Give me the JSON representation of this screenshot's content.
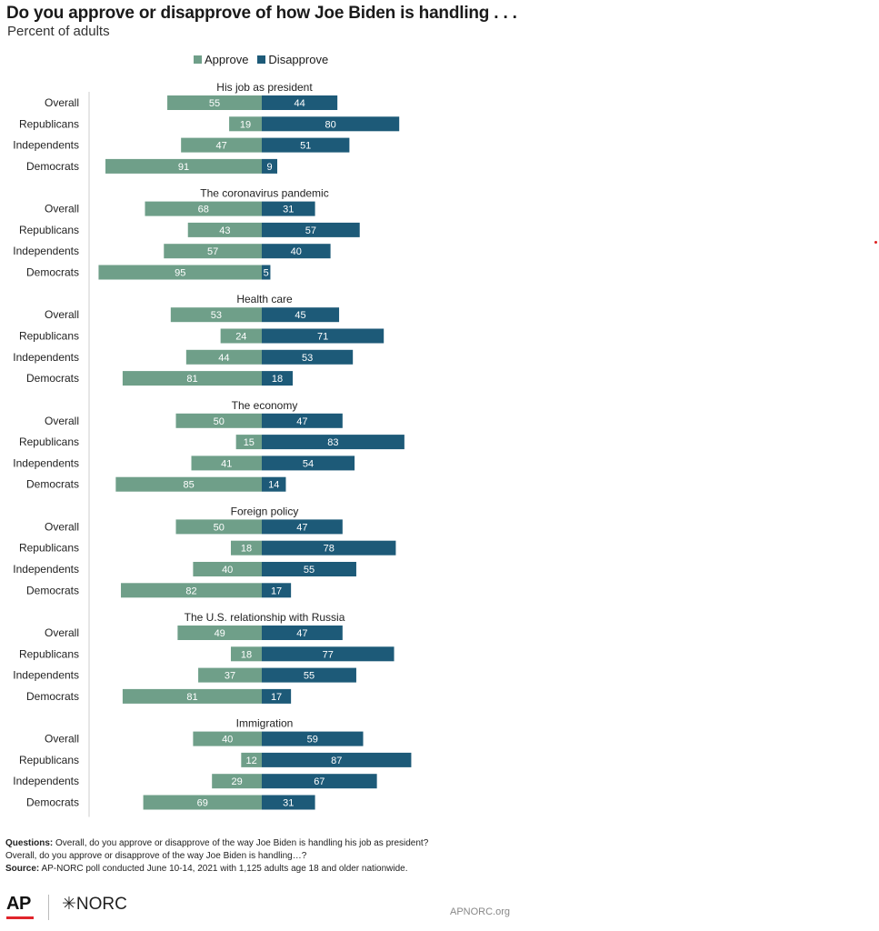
{
  "header": {
    "title": "Do you approve or disapprove of how Joe Biden is handling . . .",
    "subtitle": "Percent of adults"
  },
  "legend": {
    "approve": "Approve",
    "disapprove": "Disapprove"
  },
  "colors": {
    "approve": "#6f9f89",
    "disapprove": "#1d5a78",
    "axis": "#cccccc"
  },
  "chart_data": {
    "type": "bar",
    "orientation": "diverging-horizontal",
    "title": "Do you approve or disapprove of how Joe Biden is handling . . .",
    "subtitle": "Percent of adults",
    "legend_position": "top",
    "series_names": [
      "Approve",
      "Disapprove"
    ],
    "groups": [
      {
        "title": "His job as president",
        "rows": [
          {
            "label": "Overall",
            "approve": 55,
            "disapprove": 44
          },
          {
            "label": "Republicans",
            "approve": 19,
            "disapprove": 80
          },
          {
            "label": "Independents",
            "approve": 47,
            "disapprove": 51
          },
          {
            "label": "Democrats",
            "approve": 91,
            "disapprove": 9
          }
        ]
      },
      {
        "title": "The coronavirus pandemic",
        "rows": [
          {
            "label": "Overall",
            "approve": 68,
            "disapprove": 31
          },
          {
            "label": "Republicans",
            "approve": 43,
            "disapprove": 57
          },
          {
            "label": "Independents",
            "approve": 57,
            "disapprove": 40
          },
          {
            "label": "Democrats",
            "approve": 95,
            "disapprove": 5
          }
        ]
      },
      {
        "title": "Health care",
        "rows": [
          {
            "label": "Overall",
            "approve": 53,
            "disapprove": 45
          },
          {
            "label": "Republicans",
            "approve": 24,
            "disapprove": 71
          },
          {
            "label": "Independents",
            "approve": 44,
            "disapprove": 53
          },
          {
            "label": "Democrats",
            "approve": 81,
            "disapprove": 18
          }
        ]
      },
      {
        "title": "The economy",
        "rows": [
          {
            "label": "Overall",
            "approve": 50,
            "disapprove": 47
          },
          {
            "label": "Republicans",
            "approve": 15,
            "disapprove": 83
          },
          {
            "label": "Independents",
            "approve": 41,
            "disapprove": 54
          },
          {
            "label": "Democrats",
            "approve": 85,
            "disapprove": 14
          }
        ]
      },
      {
        "title": "Foreign policy",
        "rows": [
          {
            "label": "Overall",
            "approve": 50,
            "disapprove": 47
          },
          {
            "label": "Republicans",
            "approve": 18,
            "disapprove": 78
          },
          {
            "label": "Independents",
            "approve": 40,
            "disapprove": 55
          },
          {
            "label": "Democrats",
            "approve": 82,
            "disapprove": 17
          }
        ]
      },
      {
        "title": "The U.S. relationship with Russia",
        "rows": [
          {
            "label": "Overall",
            "approve": 49,
            "disapprove": 47
          },
          {
            "label": "Republicans",
            "approve": 18,
            "disapprove": 77
          },
          {
            "label": "Independents",
            "approve": 37,
            "disapprove": 55
          },
          {
            "label": "Democrats",
            "approve": 81,
            "disapprove": 17
          }
        ]
      },
      {
        "title": "Immigration",
        "rows": [
          {
            "label": "Overall",
            "approve": 40,
            "disapprove": 59
          },
          {
            "label": "Republicans",
            "approve": 12,
            "disapprove": 87
          },
          {
            "label": "Independents",
            "approve": 29,
            "disapprove": 67
          },
          {
            "label": "Democrats",
            "approve": 69,
            "disapprove": 31
          }
        ]
      }
    ]
  },
  "notes": {
    "questions_label": "Questions:",
    "questions_line1": "Overall, do you approve or disapprove of the way Joe Biden is handling his job as president?",
    "questions_line2": "Overall, do you approve or disapprove of the way Joe Biden is handling…?",
    "source_label": "Source:",
    "source_text": "AP-NORC poll conducted June 10-14, 2021 with 1,125 adults age 18 and older nationwide."
  },
  "footer": {
    "logo_ap": "AP",
    "logo_norc": "✳NORC",
    "site": "APNORC.org"
  }
}
